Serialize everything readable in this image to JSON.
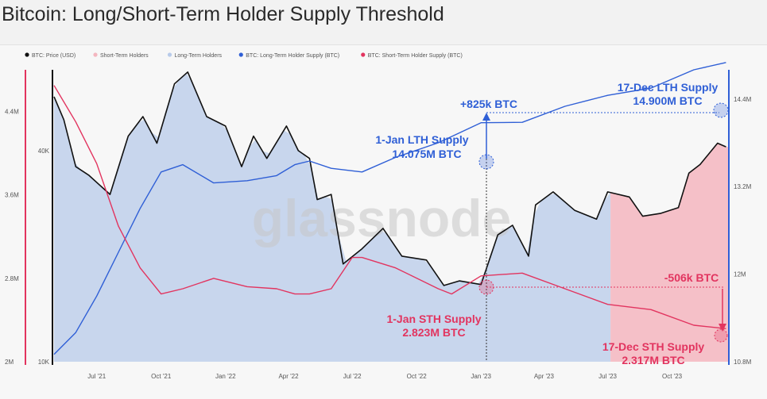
{
  "title": "Bitcoin: Long/Short-Term Holder Supply Threshold",
  "watermark": "glassnode",
  "colors": {
    "price": "#111111",
    "sth_fill": "#f4b6bf",
    "lth_fill": "#b8cbea",
    "lth_line": "#2f5fd6",
    "sth_line": "#e2345f",
    "annotation_blue": "#2f5fd6",
    "annotation_red": "#e2345f"
  },
  "legend": [
    {
      "label": "BTC: Price (USD)",
      "color": "#111111",
      "kind": "dot"
    },
    {
      "label": "Short-Term Holders",
      "color": "#f4b6bf",
      "kind": "dot"
    },
    {
      "label": "Long-Term Holders",
      "color": "#b8cbea",
      "kind": "dot"
    },
    {
      "label": "BTC: Long-Term Holder Supply (BTC)",
      "color": "#2f5fd6",
      "kind": "dot"
    },
    {
      "label": "BTC: Short-Term Holder Supply (BTC)",
      "color": "#e2345f",
      "kind": "dot"
    }
  ],
  "annotations": {
    "lth_change": "+825k BTC",
    "lth_jan_line1": "1-Jan LTH Supply",
    "lth_jan_line2": "14.075M BTC",
    "lth_dec_line1": "17-Dec LTH Supply",
    "lth_dec_line2": "14.900M BTC",
    "sth_jan_line1": "1-Jan STH Supply",
    "sth_jan_line2": "2.823M BTC",
    "sth_change": "-506k BTC",
    "sth_dec_line1": "17-Dec STH Supply",
    "sth_dec_line2": "2.317M BTC"
  },
  "chart_data": {
    "type": "line",
    "title": "Bitcoin: Long/Short-Term Holder Supply Threshold",
    "x_ticks": [
      "Jul '21",
      "Oct '21",
      "Jan '22",
      "Apr '22",
      "Jul '22",
      "Oct '22",
      "Jan '23",
      "Apr '23",
      "Jul '23",
      "Oct '23"
    ],
    "x_tick_dates": [
      "2021-07-01",
      "2021-10-01",
      "2022-01-01",
      "2022-04-01",
      "2022-07-01",
      "2022-10-01",
      "2023-01-01",
      "2023-04-01",
      "2023-07-01",
      "2023-10-01"
    ],
    "x_range": [
      "2021-05-01",
      "2023-12-20"
    ],
    "left_axis_sth_supply": {
      "ticks": [
        "2M",
        "2.8M",
        "3.6M",
        "4.4M"
      ],
      "range": [
        2000000,
        4800000
      ]
    },
    "left_axis_price": {
      "ticks": [
        "10K",
        "40K"
      ],
      "scale": "log",
      "range": [
        10000,
        68000
      ]
    },
    "right_axis_lth_supply": {
      "ticks": [
        "10.8M",
        "12M",
        "13.2M",
        "14.4M"
      ],
      "range": [
        10800000,
        14800000
      ]
    },
    "legend_position": "top-left",
    "grid": false,
    "series": [
      {
        "name": "BTC: Price (USD)",
        "axis": "price",
        "x": [
          "2021-05-01",
          "2021-05-15",
          "2021-06-01",
          "2021-06-20",
          "2021-07-20",
          "2021-08-15",
          "2021-09-05",
          "2021-09-25",
          "2021-10-20",
          "2021-11-08",
          "2021-12-05",
          "2022-01-01",
          "2022-01-24",
          "2022-02-10",
          "2022-03-01",
          "2022-03-29",
          "2022-04-15",
          "2022-05-01",
          "2022-05-12",
          "2022-06-01",
          "2022-06-18",
          "2022-07-15",
          "2022-08-14",
          "2022-09-10",
          "2022-10-15",
          "2022-11-09",
          "2022-12-01",
          "2023-01-01",
          "2023-01-25",
          "2023-02-15",
          "2023-03-10",
          "2023-03-20",
          "2023-04-14",
          "2023-05-15",
          "2023-06-15",
          "2023-07-01",
          "2023-08-01",
          "2023-08-20",
          "2023-09-15",
          "2023-10-10",
          "2023-10-25",
          "2023-11-10",
          "2023-12-05",
          "2023-12-17"
        ],
        "y": [
          57000,
          49000,
          36000,
          34000,
          30000,
          44000,
          50000,
          42000,
          62000,
          67000,
          50000,
          47000,
          36000,
          44000,
          38000,
          47000,
          40000,
          38000,
          29000,
          30000,
          19000,
          21000,
          24000,
          20000,
          19500,
          16500,
          17000,
          16600,
          23000,
          24500,
          20000,
          28000,
          30500,
          27000,
          25500,
          30500,
          29500,
          26000,
          26500,
          27500,
          34500,
          36500,
          42000,
          41000
        ]
      },
      {
        "name": "BTC: Long-Term Holder Supply (BTC)",
        "axis": "lth_supply",
        "x": [
          "2021-05-01",
          "2021-06-01",
          "2021-07-01",
          "2021-08-01",
          "2021-09-01",
          "2021-10-01",
          "2021-11-01",
          "2021-12-15",
          "2022-02-01",
          "2022-03-15",
          "2022-04-10",
          "2022-05-01",
          "2022-06-01",
          "2022-07-15",
          "2022-09-01",
          "2022-11-01",
          "2023-01-01",
          "2023-03-01",
          "2023-05-01",
          "2023-07-01",
          "2023-09-01",
          "2023-11-01",
          "2023-12-17"
        ],
        "y": [
          10900000,
          11200000,
          11700000,
          12300000,
          12900000,
          13400000,
          13500000,
          13250000,
          13280000,
          13350000,
          13500000,
          13550000,
          13450000,
          13400000,
          13600000,
          13800000,
          14075000,
          14080000,
          14300000,
          14450000,
          14550000,
          14800000,
          14900000
        ]
      },
      {
        "name": "BTC: Short-Term Holder Supply (BTC)",
        "axis": "sth_supply",
        "x": [
          "2021-05-01",
          "2021-06-01",
          "2021-07-01",
          "2021-08-01",
          "2021-09-01",
          "2021-10-01",
          "2021-11-01",
          "2021-12-15",
          "2022-02-01",
          "2022-03-15",
          "2022-04-10",
          "2022-05-01",
          "2022-06-01",
          "2022-07-01",
          "2022-07-15",
          "2022-09-01",
          "2022-11-01",
          "2022-11-20",
          "2023-01-01",
          "2023-03-01",
          "2023-05-01",
          "2023-07-01",
          "2023-09-01",
          "2023-11-01",
          "2023-12-17"
        ],
        "y": [
          4650000,
          4300000,
          3900000,
          3300000,
          2900000,
          2650000,
          2700000,
          2800000,
          2720000,
          2700000,
          2650000,
          2650000,
          2700000,
          3000000,
          3000000,
          2900000,
          2700000,
          2650000,
          2823000,
          2850000,
          2700000,
          2550000,
          2500000,
          2350000,
          2317000
        ]
      }
    ]
  }
}
